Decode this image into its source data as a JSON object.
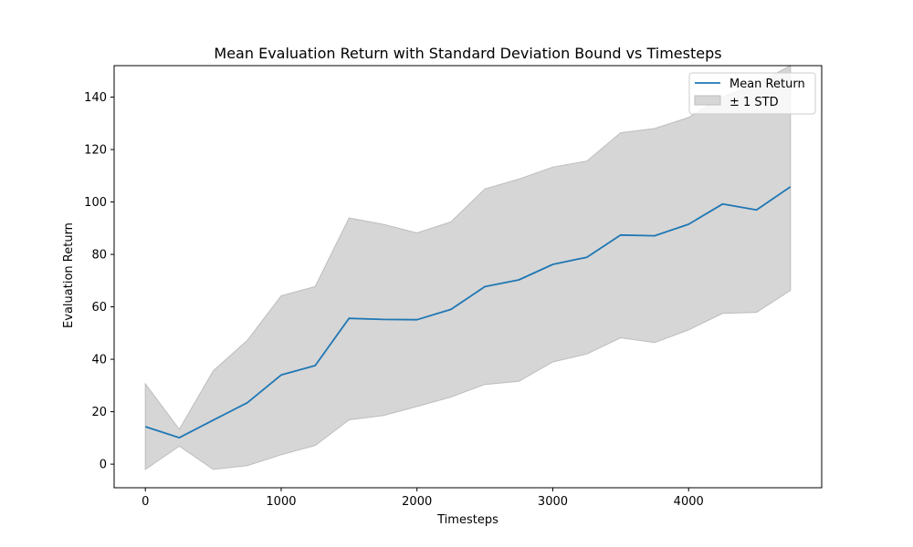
{
  "chart_data": {
    "type": "line",
    "title": "Mean Evaluation Return with Standard Deviation Bound vs Timesteps",
    "xlabel": "Timesteps",
    "ylabel": "Evaluation Return",
    "xlim": [
      -230,
      4980
    ],
    "ylim": [
      -9,
      152
    ],
    "xticks": [
      0,
      1000,
      2000,
      3000,
      4000
    ],
    "yticks": [
      0,
      20,
      40,
      60,
      80,
      100,
      120,
      140
    ],
    "grid": false,
    "legend": {
      "position": "top-right",
      "entries": [
        "Mean Return",
        "± 1 STD"
      ]
    },
    "x": [
      0,
      250,
      500,
      750,
      1000,
      1250,
      1500,
      1750,
      2000,
      2250,
      2500,
      2750,
      3000,
      3250,
      3500,
      3750,
      4000,
      4250,
      4500,
      4750
    ],
    "series": [
      {
        "name": "Mean Return",
        "color": "#1f77b4",
        "values": [
          14.3,
          10.1,
          16.8,
          23.4,
          34.0,
          37.6,
          55.6,
          55.2,
          55.1,
          59.0,
          67.7,
          70.3,
          76.2,
          78.9,
          87.4,
          87.1,
          91.5,
          99.2,
          97.0,
          105.8
        ]
      }
    ],
    "band": {
      "name": "± 1 STD",
      "color": "#d6d6d6",
      "edge_color": "#bdbdbd",
      "lower": [
        -2.0,
        6.9,
        -2.0,
        -0.6,
        3.6,
        7.1,
        16.9,
        18.5,
        22.0,
        25.6,
        30.4,
        31.6,
        39.0,
        42.0,
        48.2,
        46.4,
        51.2,
        57.5,
        57.9,
        66.3
      ],
      "upper": [
        30.6,
        13.3,
        35.6,
        47.2,
        64.2,
        67.7,
        93.9,
        91.5,
        88.2,
        92.4,
        105.0,
        108.7,
        113.3,
        115.6,
        126.4,
        128.0,
        132.2,
        140.0,
        145.0,
        152.0
      ]
    }
  }
}
